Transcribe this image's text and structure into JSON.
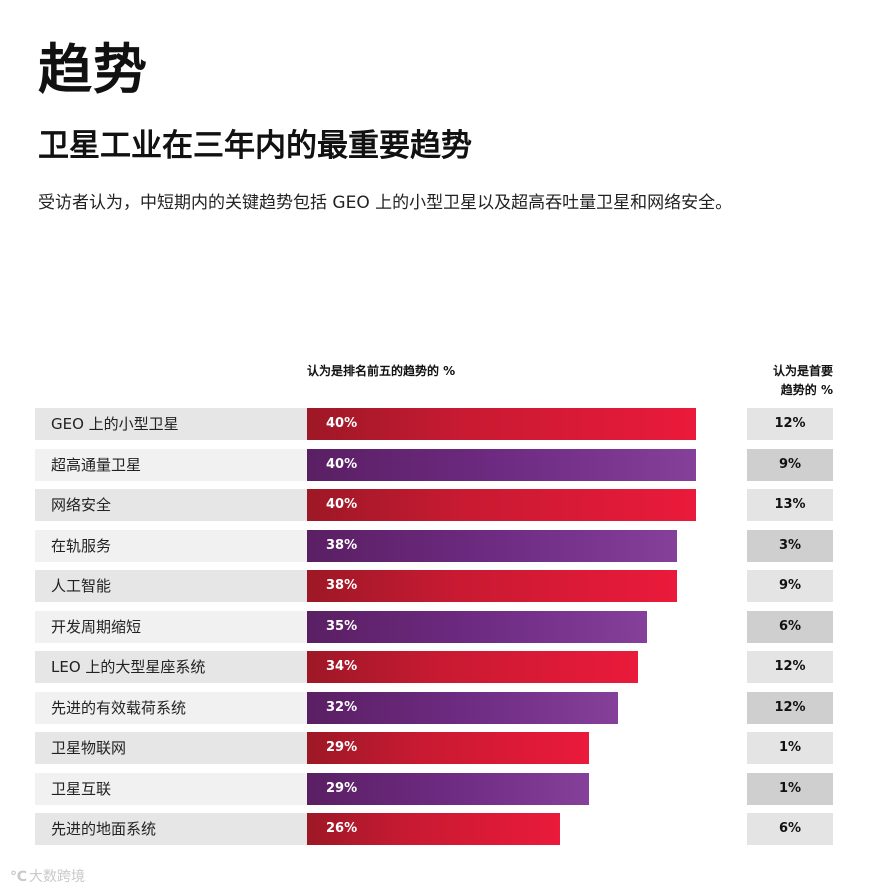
{
  "section_heading": "趋势",
  "chart_data": {
    "type": "bar",
    "orientation": "horizontal",
    "title": "卫星工业在三年内的最重要趋势",
    "subtitle": "受访者认为，中短期内的关键趋势包括 GEO 上的小型卫星以及超高吞吐量卫星和网络安全。",
    "series_header": "认为是排名前五的趋势的 %",
    "top_header_line1": "认为是首要",
    "top_header_line2": "趋势的 %",
    "xlim": [
      0,
      100
    ],
    "colors": {
      "odd": "#e2193a",
      "even": "#7a3590"
    },
    "categories": [
      "GEO 上的小型卫星",
      "超高通量卫星",
      "网络安全",
      "在轨服务",
      "人工智能",
      "开发周期缩短",
      "LEO 上的大型星座系统",
      "先进的有效载荷系统",
      "卫星物联网",
      "卫星互联",
      "先进的地面系统"
    ],
    "series": [
      {
        "values": [
          40,
          40,
          40,
          38,
          38,
          35,
          34,
          32,
          29,
          29,
          26
        ]
      },
      {
        "values": [
          12,
          9,
          13,
          3,
          9,
          6,
          12,
          12,
          1,
          1,
          6
        ]
      }
    ]
  },
  "watermark": "大数跨境"
}
